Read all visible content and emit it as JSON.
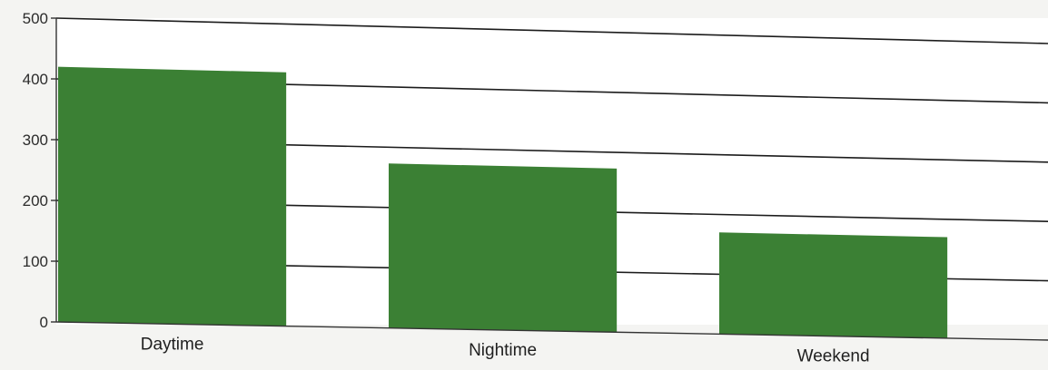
{
  "chart_data": {
    "type": "bar",
    "categories": [
      "Daytime",
      "Nightime",
      "Weekend"
    ],
    "values": [
      420,
      273,
      170
    ],
    "ylim": [
      0,
      500
    ],
    "yticks": [
      0,
      100,
      200,
      300,
      400,
      500
    ],
    "grid": true,
    "legend": "none",
    "colors": {
      "bar": "#3b8034",
      "plot_background": "#ffffff",
      "grid": "#1c1c1c"
    }
  }
}
